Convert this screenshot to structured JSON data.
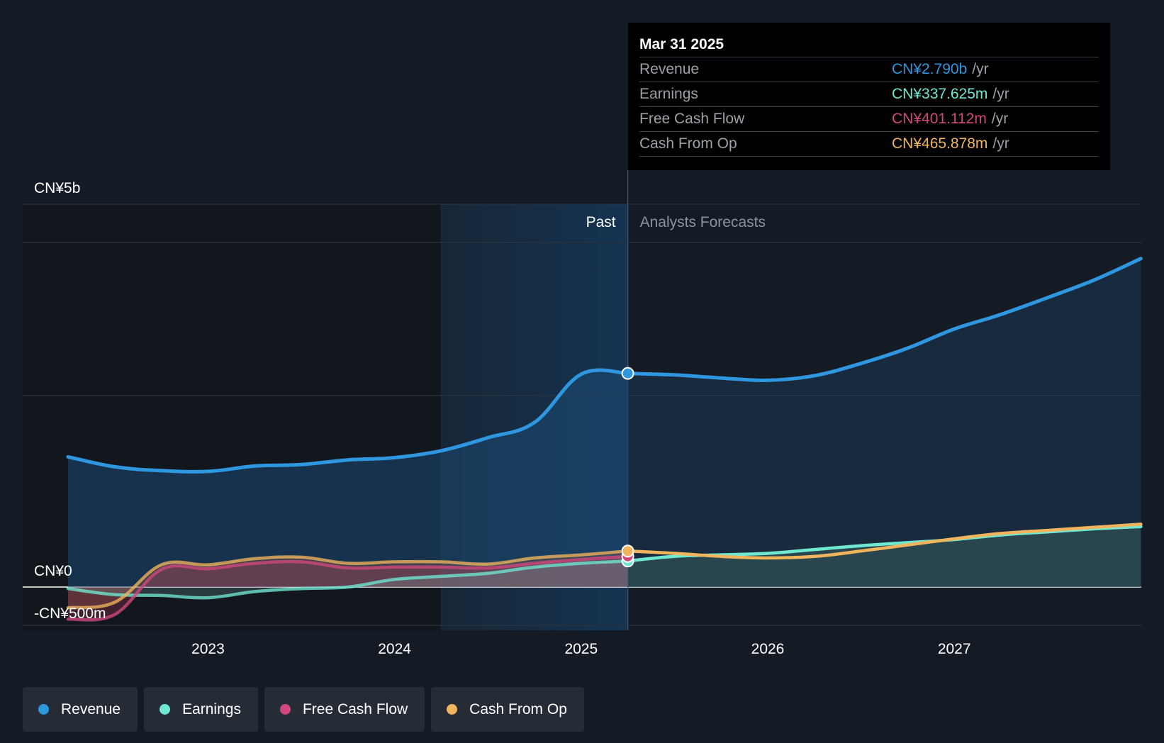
{
  "tooltip": {
    "date": "Mar 31 2025",
    "rows": [
      {
        "label": "Revenue",
        "value": "CN¥2.790b",
        "unit": "/yr",
        "color": "#2e97e0"
      },
      {
        "label": "Earnings",
        "value": "CN¥337.625m",
        "unit": "/yr",
        "color": "#6fe8d2"
      },
      {
        "label": "Free Cash Flow",
        "value": "CN¥401.112m",
        "unit": "/yr",
        "color": "#d1487c"
      },
      {
        "label": "Cash From Op",
        "value": "CN¥465.878m",
        "unit": "/yr",
        "color": "#f0b45c"
      }
    ]
  },
  "legend": [
    {
      "label": "Revenue",
      "color": "#2e97e0"
    },
    {
      "label": "Earnings",
      "color": "#6fe8d2"
    },
    {
      "label": "Free Cash Flow",
      "color": "#d1487c"
    },
    {
      "label": "Cash From Op",
      "color": "#f0b45c"
    }
  ],
  "chart_data": {
    "type": "line",
    "title": "",
    "y_unit": "CN¥ billions",
    "ylim": [
      -0.5,
      5
    ],
    "xlim": [
      2022.0,
      2028.0
    ],
    "y_tick_labels": [
      {
        "value": 5,
        "label": "CN¥5b"
      },
      {
        "value": 0,
        "label": "CN¥0"
      },
      {
        "value": -0.5,
        "label": "-CN¥500m"
      }
    ],
    "x_ticks": [
      2023,
      2024,
      2025,
      2026,
      2027
    ],
    "x_tick_labels": [
      "2023",
      "2024",
      "2025",
      "2026",
      "2027"
    ],
    "past_label": "Past",
    "forecast_label": "Analysts Forecasts",
    "highlight_start": 2024.25,
    "divider_x": 2025.25,
    "series": [
      {
        "name": "Revenue",
        "color": "#2e97e0",
        "past": [
          [
            2022.25,
            1.7
          ],
          [
            2022.5,
            1.57
          ],
          [
            2022.75,
            1.52
          ],
          [
            2023.0,
            1.51
          ],
          [
            2023.25,
            1.58
          ],
          [
            2023.5,
            1.6
          ],
          [
            2023.75,
            1.66
          ],
          [
            2024.0,
            1.69
          ],
          [
            2024.25,
            1.78
          ],
          [
            2024.5,
            1.95
          ],
          [
            2024.75,
            2.15
          ],
          [
            2025.0,
            2.78
          ],
          [
            2025.25,
            2.79
          ]
        ],
        "forecast": [
          [
            2025.25,
            2.79
          ],
          [
            2025.5,
            2.77
          ],
          [
            2025.75,
            2.73
          ],
          [
            2026.0,
            2.7
          ],
          [
            2026.25,
            2.76
          ],
          [
            2026.5,
            2.92
          ],
          [
            2026.75,
            3.12
          ],
          [
            2027.0,
            3.37
          ],
          [
            2027.25,
            3.56
          ],
          [
            2027.5,
            3.78
          ],
          [
            2027.75,
            4.01
          ],
          [
            2028.0,
            4.29
          ]
        ]
      },
      {
        "name": "Earnings",
        "color": "#6fe8d2",
        "past": [
          [
            2022.25,
            -0.02
          ],
          [
            2022.5,
            -0.1
          ],
          [
            2022.75,
            -0.11
          ],
          [
            2023.0,
            -0.14
          ],
          [
            2023.25,
            -0.06
          ],
          [
            2023.5,
            -0.02
          ],
          [
            2023.75,
            0.0
          ],
          [
            2024.0,
            0.1
          ],
          [
            2024.25,
            0.14
          ],
          [
            2024.5,
            0.18
          ],
          [
            2024.75,
            0.26
          ],
          [
            2025.0,
            0.31
          ],
          [
            2025.25,
            0.34
          ]
        ],
        "forecast": [
          [
            2025.25,
            0.34
          ],
          [
            2025.5,
            0.4
          ],
          [
            2025.75,
            0.42
          ],
          [
            2026.0,
            0.44
          ],
          [
            2026.25,
            0.49
          ],
          [
            2026.5,
            0.54
          ],
          [
            2026.75,
            0.58
          ],
          [
            2027.0,
            0.62
          ],
          [
            2027.25,
            0.68
          ],
          [
            2027.5,
            0.72
          ],
          [
            2027.75,
            0.76
          ],
          [
            2028.0,
            0.79
          ]
        ]
      },
      {
        "name": "Free Cash Flow",
        "color": "#d1487c",
        "past": [
          [
            2022.25,
            -0.42
          ],
          [
            2022.5,
            -0.36
          ],
          [
            2022.75,
            0.23
          ],
          [
            2023.0,
            0.24
          ],
          [
            2023.25,
            0.31
          ],
          [
            2023.5,
            0.33
          ],
          [
            2023.75,
            0.25
          ],
          [
            2024.0,
            0.26
          ],
          [
            2024.25,
            0.26
          ],
          [
            2024.5,
            0.25
          ],
          [
            2024.75,
            0.31
          ],
          [
            2025.0,
            0.36
          ],
          [
            2025.25,
            0.4
          ]
        ],
        "forecast": []
      },
      {
        "name": "Cash From Op",
        "color": "#f0b45c",
        "past": [
          [
            2022.25,
            -0.27
          ],
          [
            2022.5,
            -0.2
          ],
          [
            2022.75,
            0.29
          ],
          [
            2023.0,
            0.29
          ],
          [
            2023.25,
            0.37
          ],
          [
            2023.5,
            0.39
          ],
          [
            2023.75,
            0.31
          ],
          [
            2024.0,
            0.33
          ],
          [
            2024.25,
            0.33
          ],
          [
            2024.5,
            0.3
          ],
          [
            2024.75,
            0.38
          ],
          [
            2025.0,
            0.42
          ],
          [
            2025.25,
            0.47
          ]
        ],
        "forecast": [
          [
            2025.25,
            0.47
          ],
          [
            2025.5,
            0.44
          ],
          [
            2025.75,
            0.4
          ],
          [
            2026.0,
            0.38
          ],
          [
            2026.25,
            0.4
          ],
          [
            2026.5,
            0.47
          ],
          [
            2026.75,
            0.55
          ],
          [
            2027.0,
            0.63
          ],
          [
            2027.25,
            0.7
          ],
          [
            2027.5,
            0.74
          ],
          [
            2027.75,
            0.78
          ],
          [
            2028.0,
            0.82
          ]
        ]
      }
    ],
    "tooltip_point_x": 2025.25
  }
}
